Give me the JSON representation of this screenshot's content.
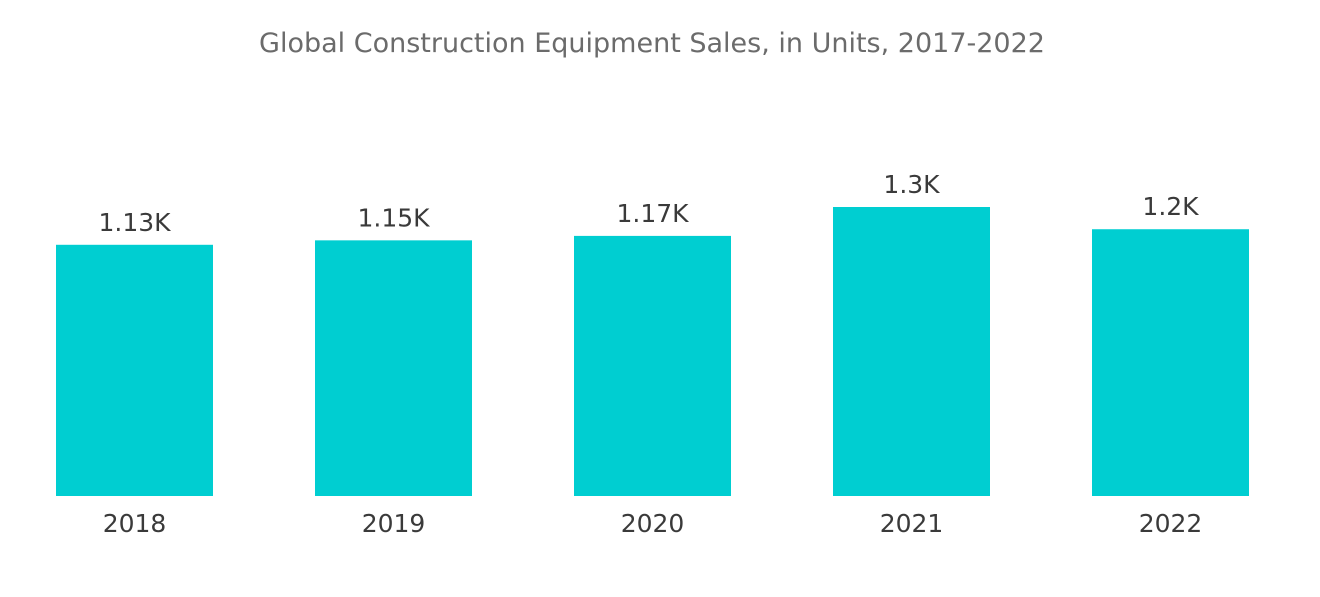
{
  "chart_data": {
    "type": "bar",
    "title": "Global Construction Equipment Sales, in Units, 2017-2022",
    "xlabel": "",
    "ylabel": "",
    "categories": [
      "2018",
      "2019",
      "2020",
      "2021",
      "2022"
    ],
    "values": [
      1130,
      1150,
      1170,
      1300,
      1200
    ],
    "data_labels": [
      "1.13K",
      "1.15K",
      "1.17K",
      "1.3K",
      "1.2K"
    ],
    "ylim": [
      0,
      1300
    ],
    "grid": false,
    "legend": "none",
    "bar_color": "#00CED1"
  }
}
